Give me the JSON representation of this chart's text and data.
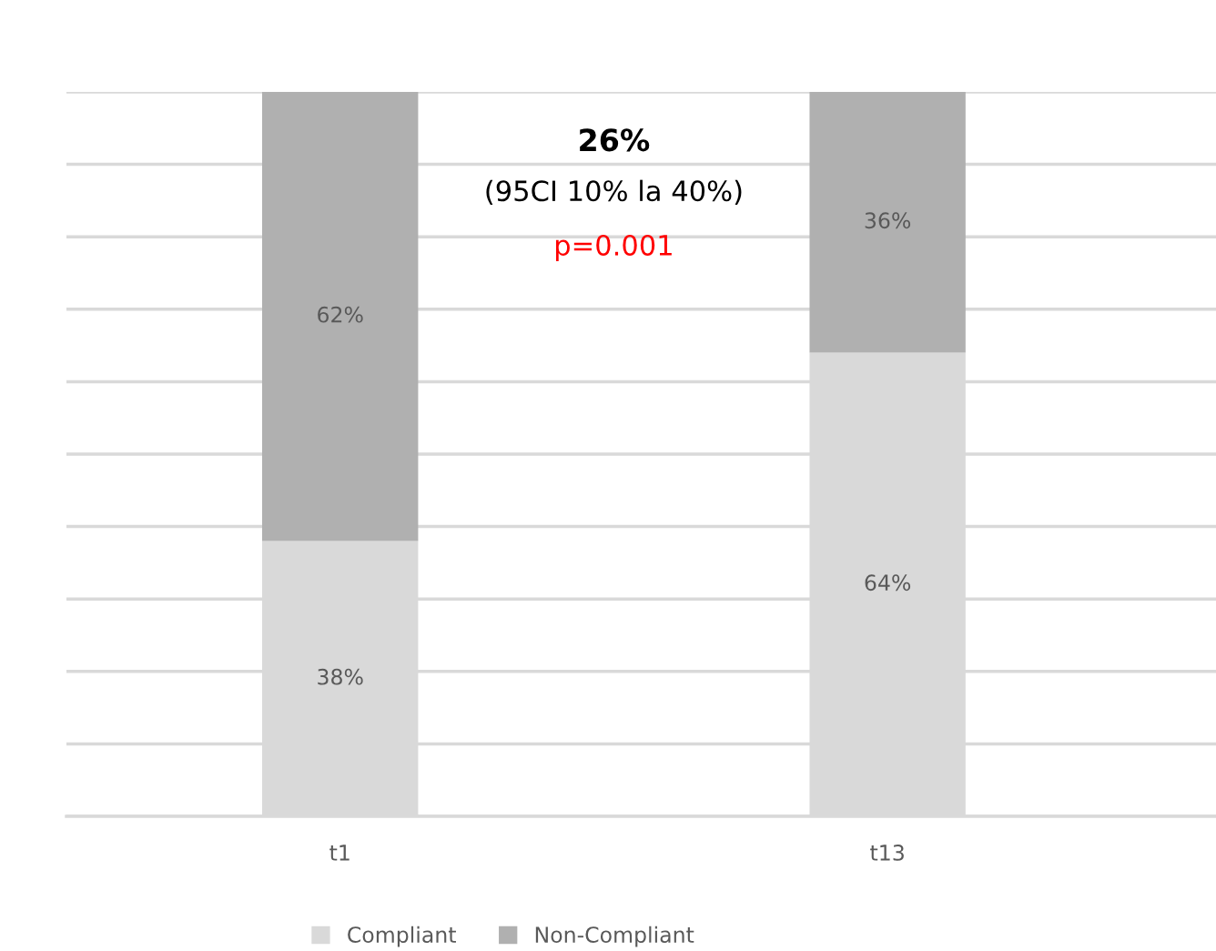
{
  "chart_data": {
    "type": "bar",
    "stacked": true,
    "categories": [
      "t1",
      "t13"
    ],
    "series": [
      {
        "name": "Compliant",
        "color": "#d9d9d9",
        "values": [
          38,
          64
        ],
        "value_labels": [
          "38%",
          "64%"
        ]
      },
      {
        "name": "Non-Compliant",
        "color": "#b0b0b0",
        "values": [
          62,
          36
        ],
        "value_labels": [
          "62%",
          "36%"
        ]
      }
    ],
    "tick_labels": "x",
    "grid": "y",
    "legend": "bottom",
    "annotations": [
      "26%",
      "(95CI 10% la 40%)",
      "p=0.001"
    ]
  }
}
